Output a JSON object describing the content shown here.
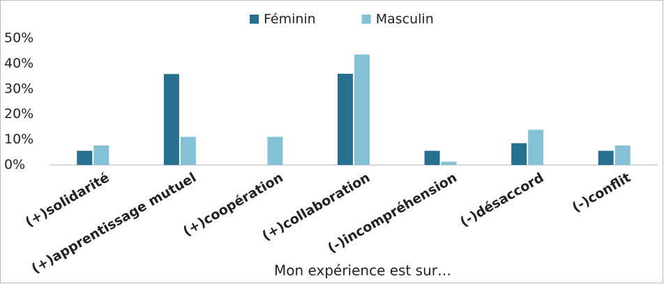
{
  "chart_data": {
    "type": "bar",
    "x_label": "Mon expérience est sur…",
    "categories": [
      "(+)solidarité",
      "(+)apprentissage mutuel",
      "(+)coopération",
      "(+)collaboration",
      "(-)incompréhension",
      "(-)désaccord",
      "(-)conflit"
    ],
    "series": [
      {
        "name": "Féminin",
        "color": "#266f8e",
        "values": [
          5.6,
          35.9,
          0,
          36,
          5.6,
          8.6,
          5.6
        ]
      },
      {
        "name": "Masculin",
        "color": "#85c1d6",
        "values": [
          7.7,
          11.1,
          11.1,
          43.6,
          1.3,
          13.9,
          7.7
        ]
      }
    ],
    "ylim": [
      0,
      50
    ],
    "yticks": [
      {
        "value": 0,
        "label": "0%"
      },
      {
        "value": 10,
        "label": "10%"
      },
      {
        "value": 20,
        "label": "20%"
      },
      {
        "value": 30,
        "label": "30%"
      },
      {
        "value": 40,
        "label": "40%"
      },
      {
        "value": 50,
        "label": "50%"
      }
    ],
    "grid": false,
    "legend": "top"
  }
}
